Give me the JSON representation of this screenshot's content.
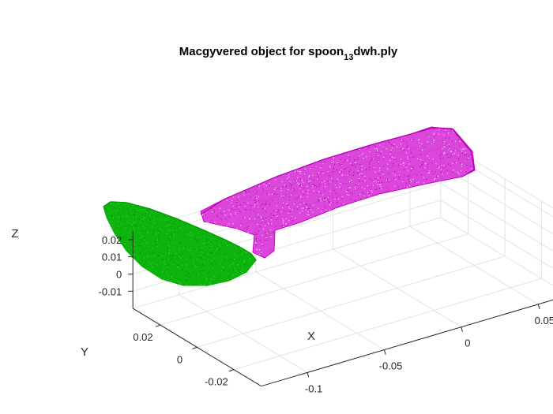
{
  "chart_data": {
    "type": "scatter3d",
    "title": {
      "prefix": "Macgyvered object for spoon",
      "subscript": "13",
      "suffix": "dwh.ply"
    },
    "xlabel": "X",
    "ylabel": "Y",
    "zlabel": "Z",
    "xlim": [
      -0.13,
      0.07
    ],
    "ylim": [
      -0.035,
      0.035
    ],
    "zlim": [
      -0.02,
      0.025
    ],
    "x_ticks": [
      {
        "value": -0.1,
        "label": "-0.1"
      },
      {
        "value": -0.05,
        "label": "-0.05"
      },
      {
        "value": 0,
        "label": "0"
      },
      {
        "value": 0.05,
        "label": "0.05"
      }
    ],
    "y_ticks": [
      {
        "value": -0.02,
        "label": "-0.02"
      },
      {
        "value": 0,
        "label": "0"
      },
      {
        "value": 0.02,
        "label": "0.02"
      }
    ],
    "z_ticks": [
      {
        "value": -0.01,
        "label": "-0.01"
      },
      {
        "value": 0,
        "label": "0"
      },
      {
        "value": 0.01,
        "label": "0.01"
      },
      {
        "value": 0.02,
        "label": "0.02"
      }
    ],
    "grid": true,
    "series": [
      {
        "part": "handle",
        "color": "#cc00cc",
        "shape_x": [
          -0.08,
          0.06
        ],
        "description": "dense magenta point cloud, elongated handle"
      },
      {
        "part": "bowl",
        "color": "#00b000",
        "shape_x": [
          -0.135,
          -0.085
        ],
        "description": "dense green point cloud, half-ellipsoid bowl"
      }
    ]
  }
}
